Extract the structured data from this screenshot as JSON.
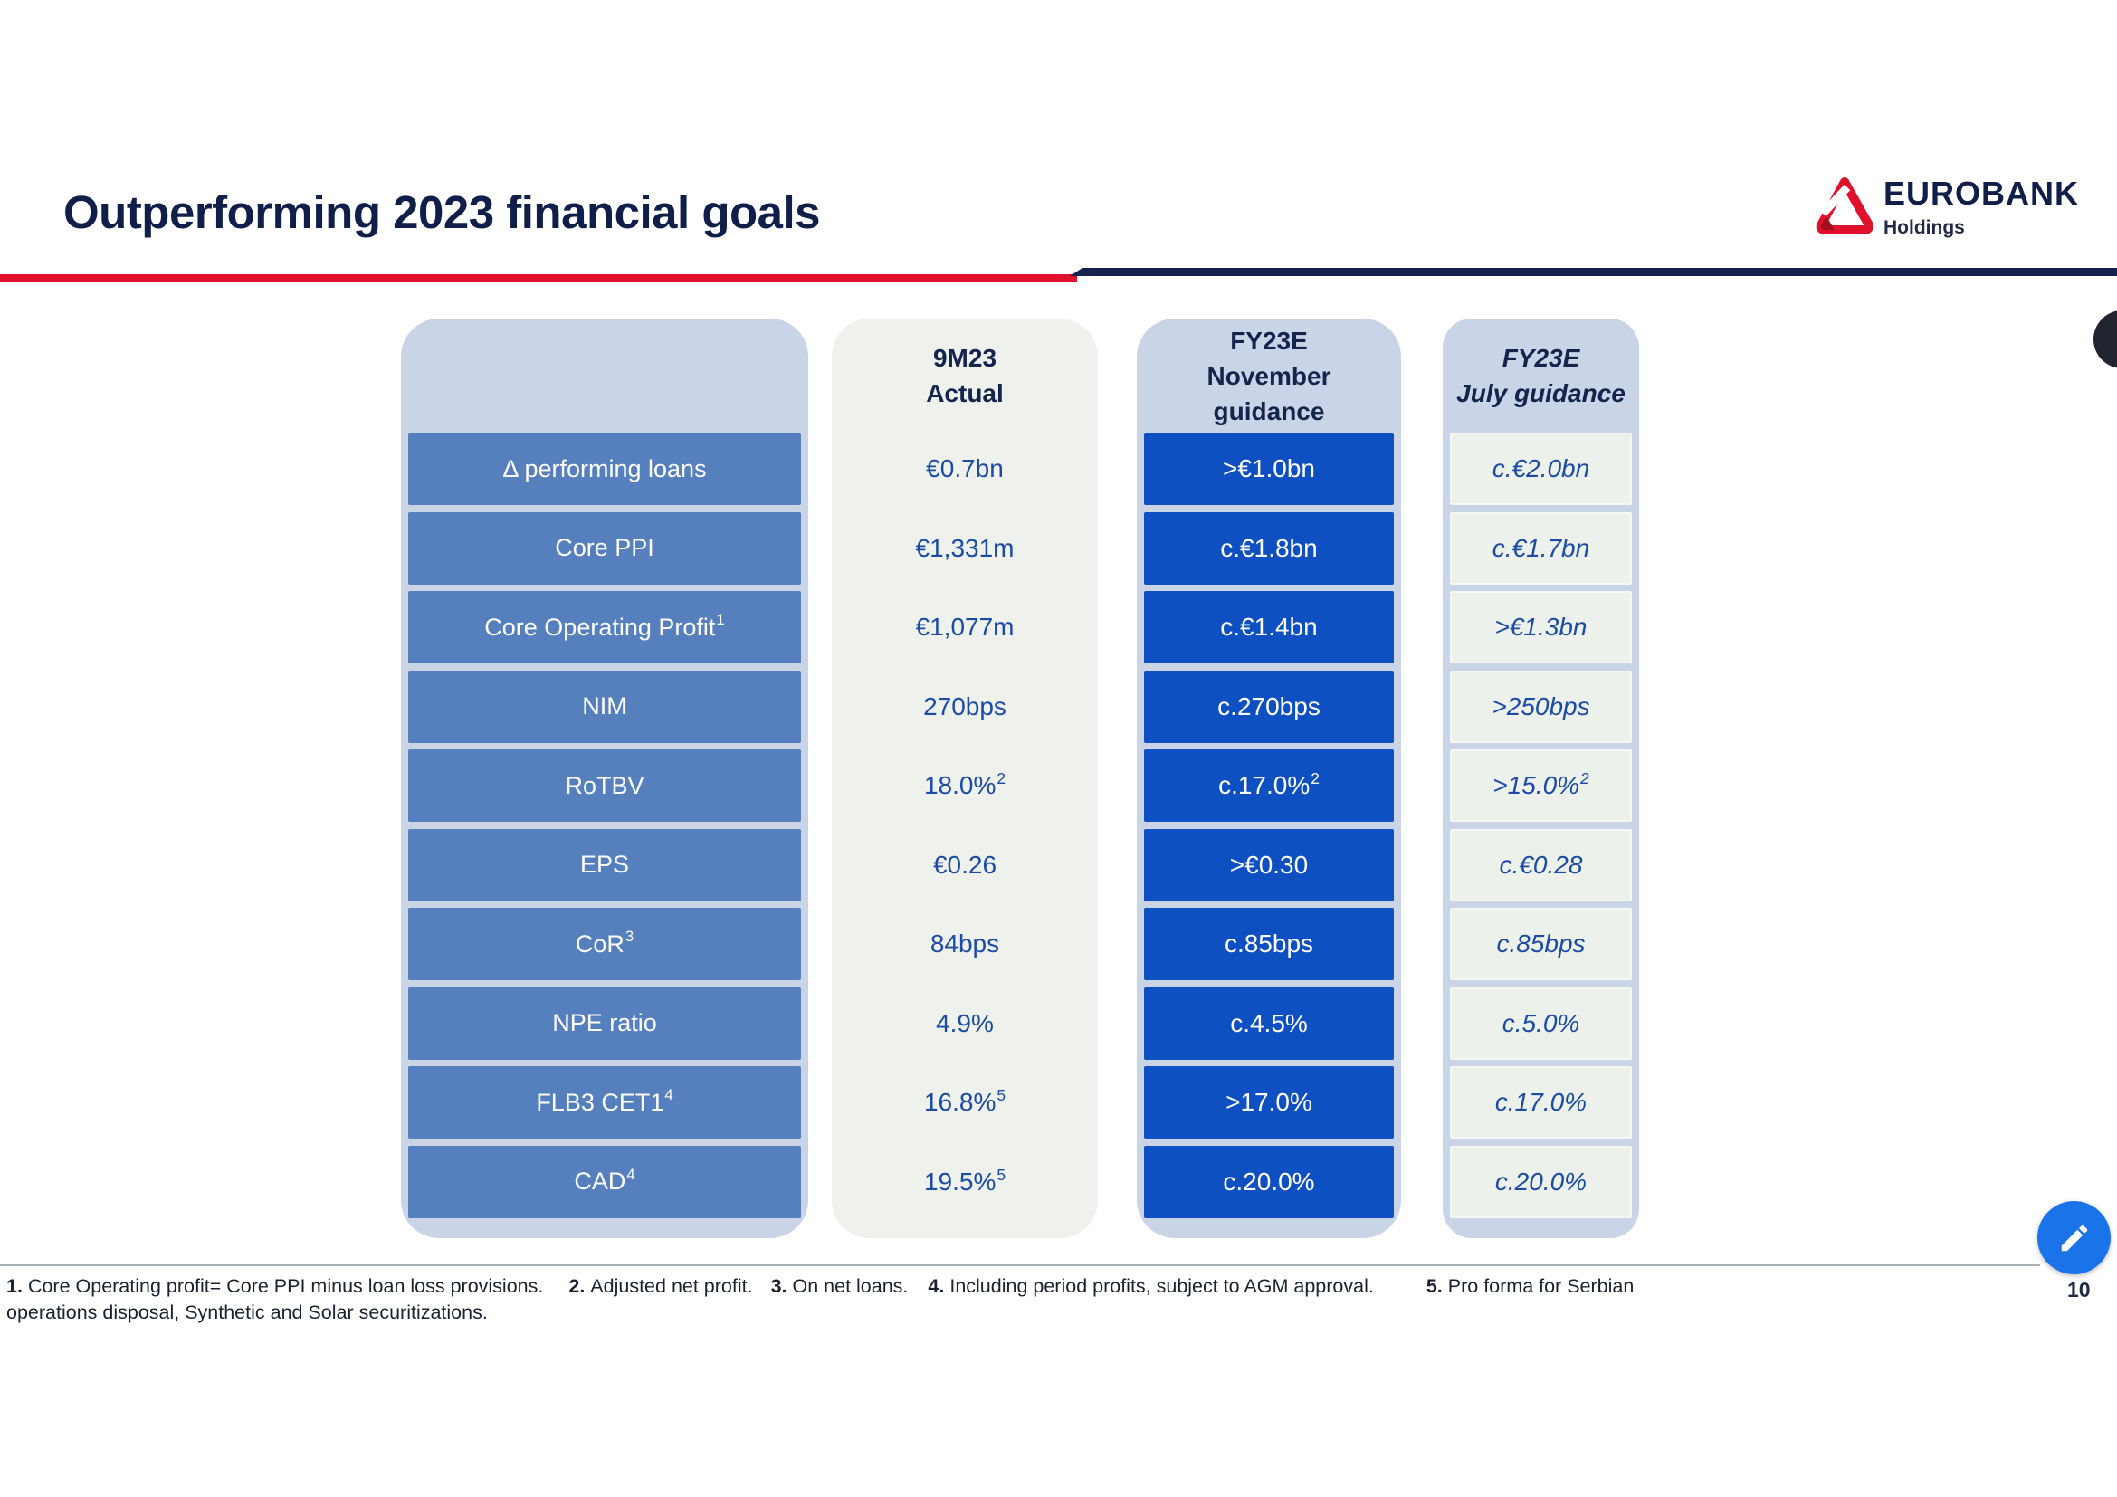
{
  "slide": {
    "title": "Outperforming 2023 financial goals",
    "page_number": "10"
  },
  "logo": {
    "brand": "EUROBANK",
    "sub": "Holdings"
  },
  "icons": {
    "fab": "pencil-edit-icon",
    "logo_mark": "eurobank-triangle-logo"
  },
  "colors": {
    "navy": "#101f4a",
    "accent_red": "#e0112d",
    "container_blue_gray": "#c9d4e7",
    "label_cell_blue": "#567fbe",
    "guidance_cell_blue": "#0e4fc1",
    "light_column_bg": "#eef1ec",
    "value_text_blue": "#1b4ba4",
    "fab_blue": "#1a73e8"
  },
  "table": {
    "headers": {
      "labels": "",
      "actual": [
        "9M23",
        "Actual"
      ],
      "november": [
        "FY23E",
        "November",
        "guidance"
      ],
      "july": [
        "FY23E",
        "July guidance"
      ]
    },
    "rows": [
      {
        "label": "Δ performing loans",
        "label_sup": "",
        "actual": "€0.7bn",
        "actual_sup": "",
        "nov": ">€1.0bn",
        "nov_sup": "",
        "july": "c.€2.0bn",
        "july_sup": ""
      },
      {
        "label": "Core PPI",
        "label_sup": "",
        "actual": "€1,331m",
        "actual_sup": "",
        "nov": "c.€1.8bn",
        "nov_sup": "",
        "july": "c.€1.7bn",
        "july_sup": ""
      },
      {
        "label": "Core Operating Profit",
        "label_sup": "1",
        "actual": "€1,077m",
        "actual_sup": "",
        "nov": "c.€1.4bn",
        "nov_sup": "",
        "july": ">€1.3bn",
        "july_sup": ""
      },
      {
        "label": "NIM",
        "label_sup": "",
        "actual": "270bps",
        "actual_sup": "",
        "nov": "c.270bps",
        "nov_sup": "",
        "july": ">250bps",
        "july_sup": ""
      },
      {
        "label": "RoTBV",
        "label_sup": "",
        "actual": "18.0%",
        "actual_sup": "2",
        "nov": "c.17.0%",
        "nov_sup": "2",
        "july": ">15.0%",
        "july_sup": "2"
      },
      {
        "label": "EPS",
        "label_sup": "",
        "actual": "€0.26",
        "actual_sup": "",
        "nov": ">€0.30",
        "nov_sup": "",
        "july": "c.€0.28",
        "july_sup": ""
      },
      {
        "label": "CoR",
        "label_sup": "3",
        "actual": "84bps",
        "actual_sup": "",
        "nov": "c.85bps",
        "nov_sup": "",
        "july": "c.85bps",
        "july_sup": ""
      },
      {
        "label": "NPE ratio",
        "label_sup": "",
        "actual": "4.9%",
        "actual_sup": "",
        "nov": "c.4.5%",
        "nov_sup": "",
        "july": "c.5.0%",
        "july_sup": ""
      },
      {
        "label": "FLB3 CET1",
        "label_sup": "4",
        "actual": "16.8%",
        "actual_sup": "5",
        "nov": ">17.0%",
        "nov_sup": "",
        "july": "c.17.0%",
        "july_sup": ""
      },
      {
        "label": "CAD",
        "label_sup": "4",
        "actual": "19.5%",
        "actual_sup": "5",
        "nov": "c.20.0%",
        "nov_sup": "",
        "july": "c.20.0%",
        "july_sup": ""
      }
    ]
  },
  "footnotes": {
    "items": [
      {
        "num": "1.",
        "text": "Core Operating profit= Core PPI minus loan loss provisions."
      },
      {
        "num": "2.",
        "text": "Adjusted net profit."
      },
      {
        "num": "3.",
        "text": "On net loans."
      },
      {
        "num": "4.",
        "text": "Including period profits, subject to AGM approval."
      },
      {
        "num": "5.",
        "text": "Pro forma for Serbian"
      }
    ],
    "line2": "operations disposal, Synthetic and Solar securitizations."
  }
}
